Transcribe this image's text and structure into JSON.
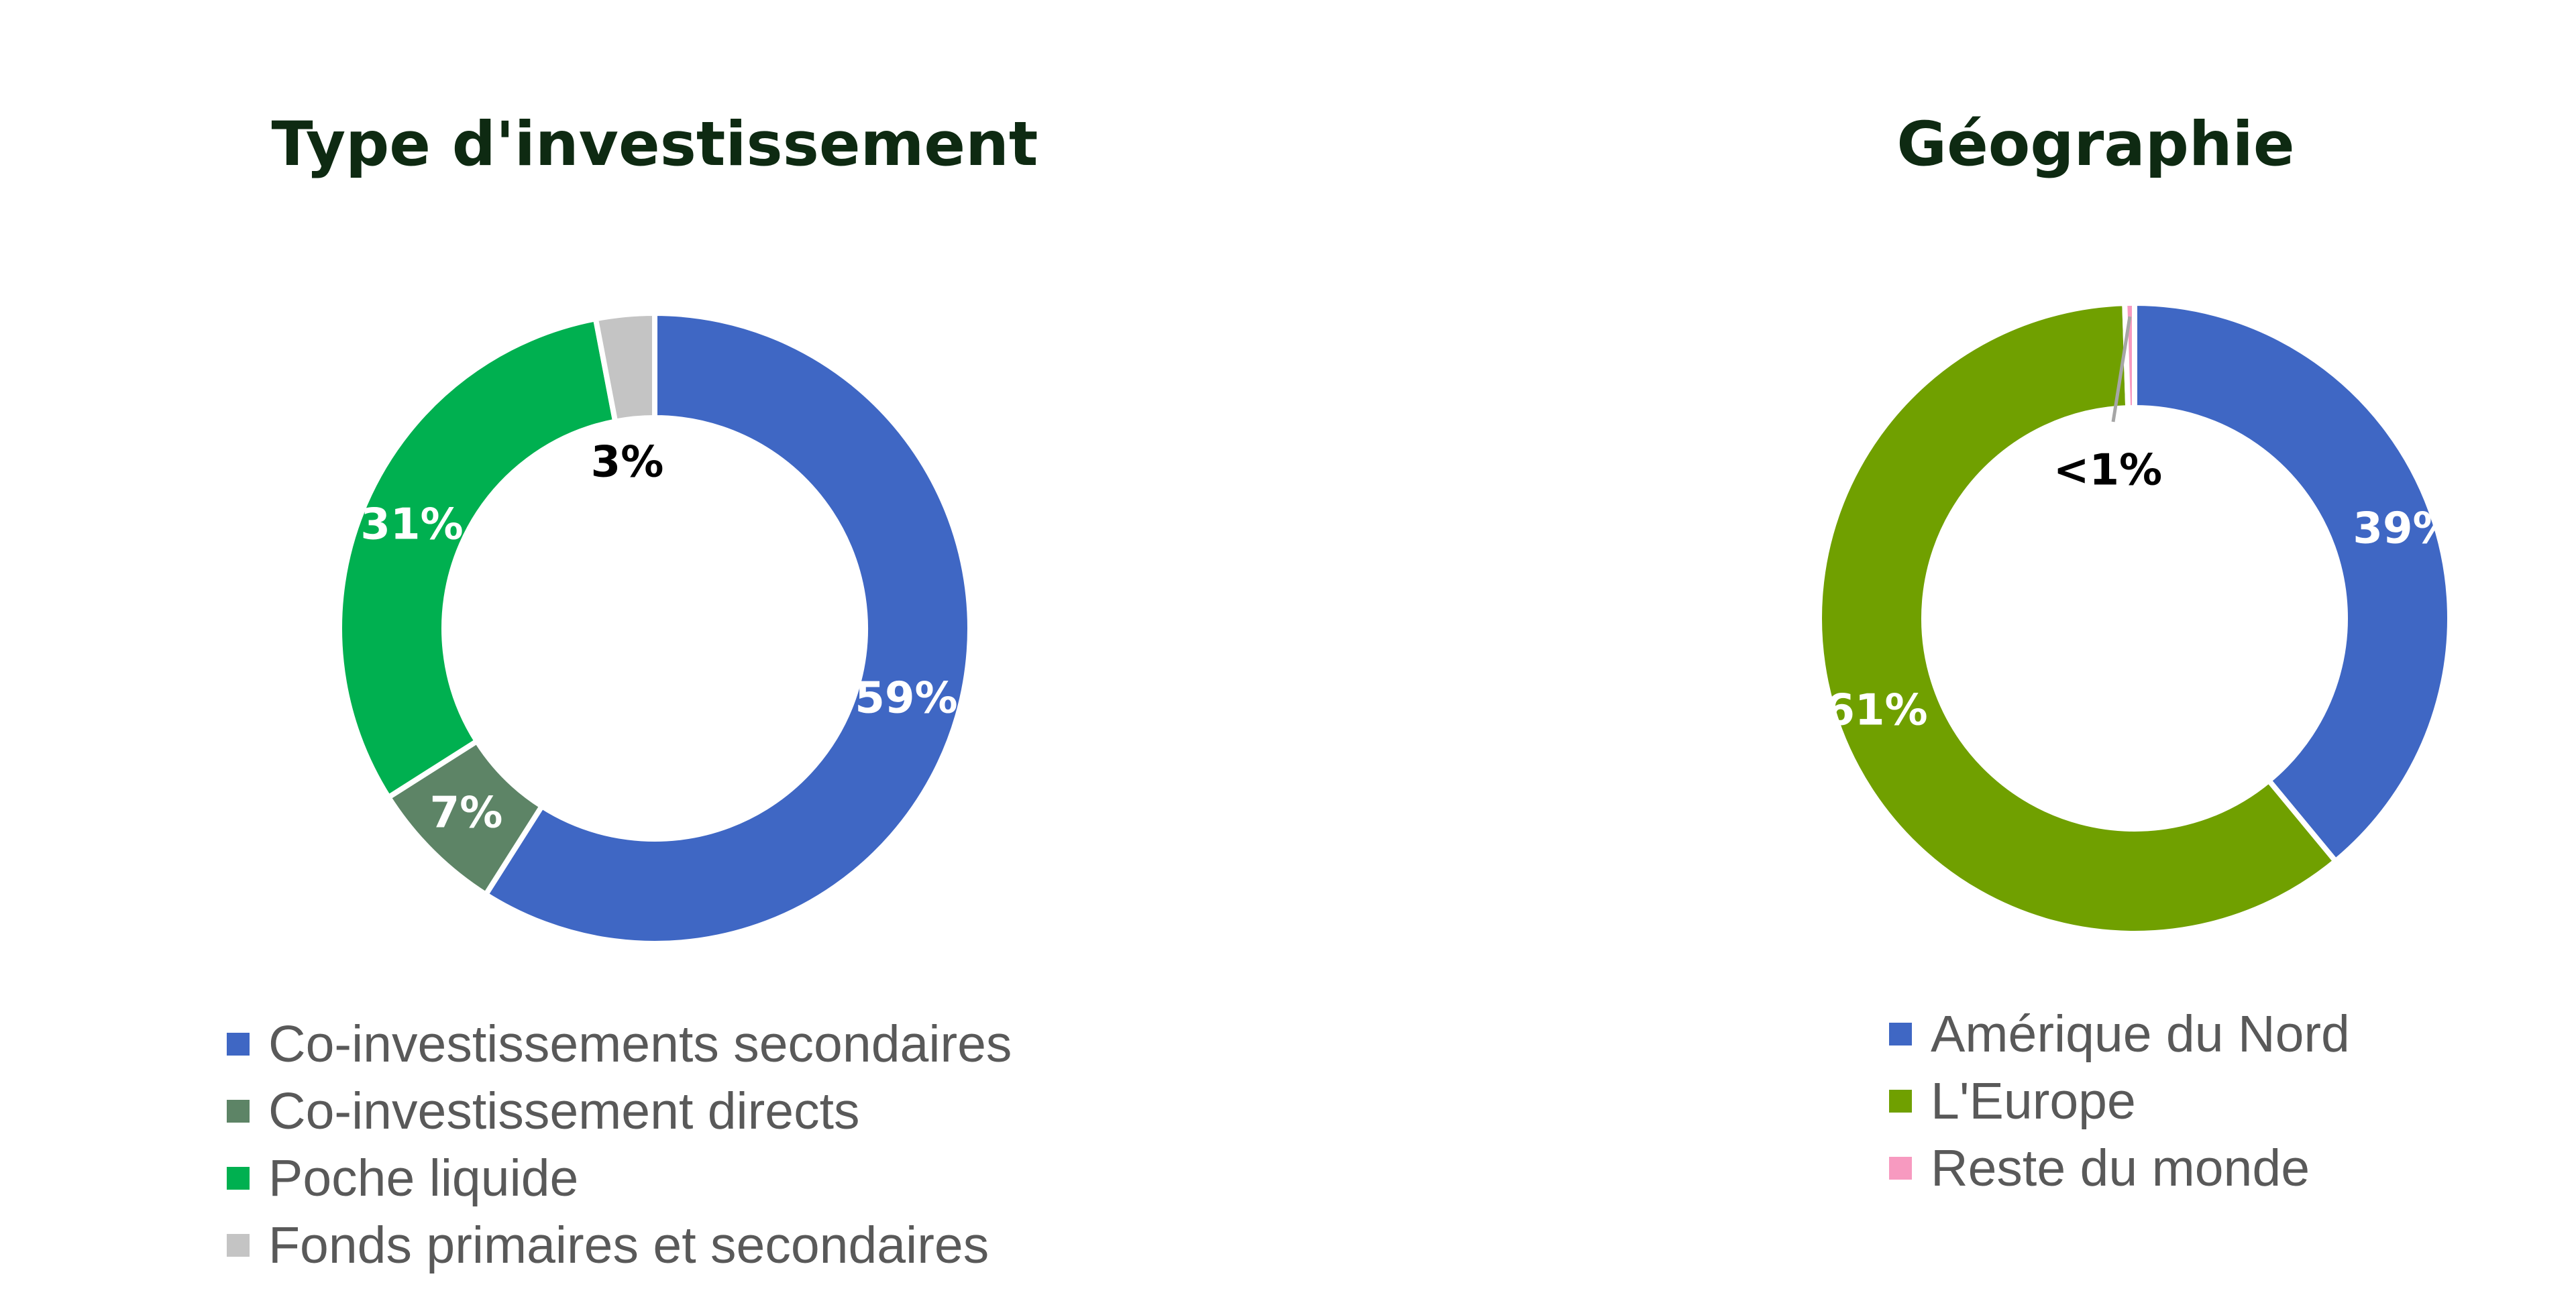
{
  "chart_data": [
    {
      "type": "pie",
      "variant": "donut",
      "title": "Type d'investissement",
      "segments": [
        {
          "label": "Co-investissements secondaires",
          "value": 59,
          "data_label": "59%",
          "color": "#3f67c4",
          "label_color": "#ffffff"
        },
        {
          "label": "Co-investissement directs",
          "value": 7,
          "data_label": "7%",
          "color": "#5d8466",
          "label_color": "#ffffff"
        },
        {
          "label": "Poche liquide",
          "value": 31,
          "data_label": "31%",
          "color": "#00b050",
          "label_color": "#ffffff"
        },
        {
          "label": "Fonds primaires et secondaires",
          "value": 3,
          "data_label": "3%",
          "color": "#c4c4c4",
          "label_color": "#000000"
        }
      ],
      "legend_position": "bottom"
    },
    {
      "type": "pie",
      "variant": "donut",
      "title": "Géographie",
      "segments": [
        {
          "label": "Amérique du Nord",
          "value": 39,
          "data_label": "39%",
          "color": "#3f67c4",
          "label_color": "#ffffff"
        },
        {
          "label": "L'Europe",
          "value": 60.5,
          "data_label": "61%",
          "color": "#70a000",
          "label_color": "#ffffff"
        },
        {
          "label": "Reste du monde",
          "value": 0.5,
          "data_label": "<1%",
          "color": "#f79ac0",
          "label_color": "#000000"
        }
      ],
      "legend_position": "bottom"
    }
  ]
}
